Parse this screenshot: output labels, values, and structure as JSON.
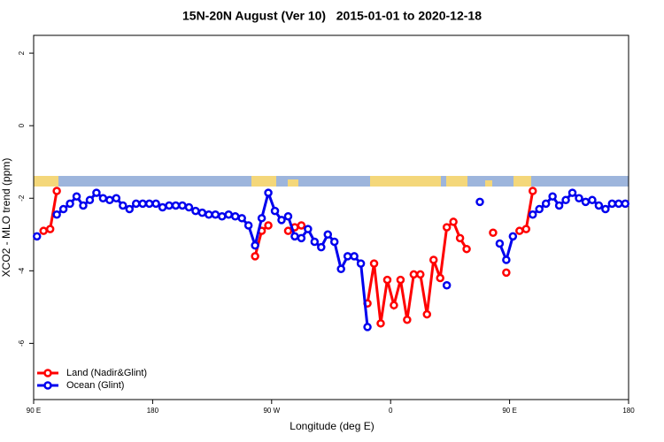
{
  "chart_data": {
    "type": "line",
    "title": "15N-20N August (Ver 10)   2015-01-01 to 2020-12-18",
    "x_label": "Longitude (deg E)",
    "y_label": "XCO2 - MLO trend (ppm)",
    "x": [
      92.5,
      97.5,
      102.5,
      107.5,
      112.5,
      117.5,
      122.5,
      127.5,
      132.5,
      137.5,
      142.5,
      147.5,
      152.5,
      157.5,
      162.5,
      167.5,
      172.5,
      177.5,
      182.5,
      187.5,
      192.5,
      197.5,
      202.5,
      207.5,
      212.5,
      217.5,
      222.5,
      227.5,
      232.5,
      237.5,
      242.5,
      247.5,
      252.5,
      257.5,
      262.5,
      267.5,
      272.5,
      277.5,
      282.5,
      287.5,
      292.5,
      297.5,
      302.5,
      307.5,
      312.5,
      317.5,
      322.5,
      327.5,
      332.5,
      337.5,
      342.5,
      347.5,
      352.5,
      357.5,
      362.5,
      367.5,
      372.5,
      377.5,
      382.5,
      387.5,
      392.5,
      397.5,
      402.5,
      407.5,
      412.5,
      417.5,
      422.5,
      427.5,
      432.5,
      437.5,
      442.5,
      447.5,
      452.5,
      457.5,
      462.5,
      467.5,
      472.5,
      477.5,
      482.5,
      487.5,
      492.5,
      497.5,
      502.5,
      507.5,
      512.5,
      517.5,
      522.5,
      527.5,
      532.5,
      537.5
    ],
    "series": [
      {
        "name": "Land (Nadir&Glint)",
        "color": "#ff0000",
        "values": [
          null,
          -2.9,
          -2.85,
          -1.8,
          null,
          null,
          null,
          null,
          null,
          null,
          null,
          null,
          null,
          null,
          null,
          null,
          null,
          null,
          null,
          null,
          null,
          null,
          null,
          null,
          null,
          null,
          null,
          null,
          null,
          null,
          null,
          null,
          null,
          -3.6,
          -2.9,
          -2.75,
          null,
          null,
          -2.9,
          -2.8,
          -2.75,
          null,
          null,
          null,
          null,
          null,
          null,
          null,
          null,
          null,
          -4.9,
          -3.8,
          -5.45,
          -4.25,
          -4.95,
          -4.25,
          -5.35,
          -4.1,
          -4.1,
          -5.2,
          -3.7,
          -4.2,
          -2.8,
          -2.65,
          -3.1,
          -3.4,
          null,
          null,
          null,
          -2.95,
          null,
          -4.05,
          null,
          -2.9,
          -2.85,
          -1.8,
          null,
          null,
          null,
          null,
          null,
          null,
          null,
          null,
          null,
          null,
          null,
          null,
          null,
          null
        ]
      },
      {
        "name": "Ocean (Glint)",
        "color": "#0000ee",
        "values": [
          -3.05,
          null,
          null,
          -2.45,
          -2.3,
          -2.15,
          -1.95,
          -2.2,
          -2.05,
          -1.85,
          -2.0,
          -2.05,
          -2.0,
          -2.2,
          -2.3,
          -2.15,
          -2.15,
          -2.15,
          -2.15,
          -2.25,
          -2.2,
          -2.2,
          -2.2,
          -2.25,
          -2.35,
          -2.4,
          -2.45,
          -2.45,
          -2.5,
          -2.45,
          -2.5,
          -2.55,
          -2.75,
          -3.3,
          -2.55,
          -1.85,
          -2.35,
          -2.6,
          -2.5,
          -3.05,
          -3.1,
          -2.85,
          -3.2,
          -3.35,
          -3.0,
          -3.2,
          -3.95,
          -3.6,
          -3.6,
          -3.8,
          -5.55,
          null,
          null,
          null,
          null,
          null,
          null,
          null,
          null,
          null,
          null,
          null,
          -4.4,
          null,
          null,
          null,
          null,
          -2.1,
          null,
          null,
          -3.25,
          -3.7,
          -3.05,
          null,
          null,
          -2.45,
          -2.3,
          -2.15,
          -1.95,
          -2.2,
          -2.05,
          -1.85,
          -2.0,
          -2.1,
          -2.05,
          -2.2,
          -2.3,
          -2.15,
          -2.15,
          -2.15
        ]
      }
    ],
    "xlim": [
      90,
      540
    ],
    "xticks": [
      {
        "value": 90,
        "label": "90 E"
      },
      180,
      {
        "value": 270,
        "label": "90 W"
      },
      {
        "value": 360,
        "label": "0"
      },
      {
        "value": 450,
        "label": "90 E"
      },
      {
        "value": 540,
        "label": "180"
      }
    ],
    "ylim": [
      -7.55,
      2.49
    ],
    "yticks": [
      -6,
      -4,
      -2,
      0,
      2
    ],
    "legend": "bottom-left"
  }
}
